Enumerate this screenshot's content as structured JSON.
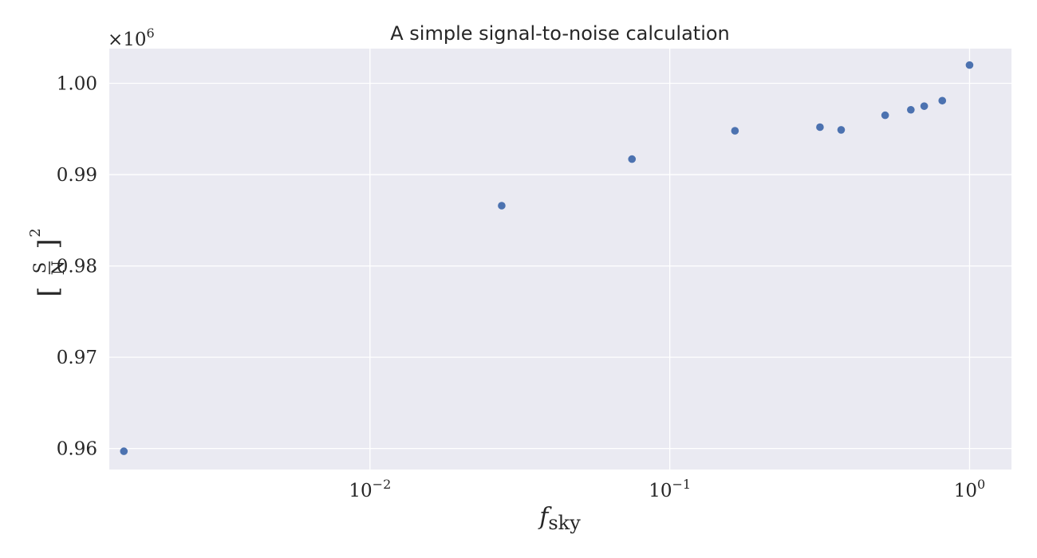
{
  "chart_data": {
    "type": "scatter",
    "title": "A simple signal-to-noise calculation",
    "xlabel": {
      "base": "f",
      "subscript": "sky"
    },
    "ylabel": {
      "numerator": "S",
      "denominator": "N",
      "exponent": "2"
    },
    "x_scale": "log",
    "y_offset_text": {
      "base": "×10",
      "exponent": "6"
    },
    "xlim": [
      0.00135,
      1.38
    ],
    "ylim": [
      0.9577,
      1.0038
    ],
    "grid": true,
    "x_ticks": [
      {
        "value": 0.01,
        "base": "10",
        "exponent": "−2"
      },
      {
        "value": 0.1,
        "base": "10",
        "exponent": "−1"
      },
      {
        "value": 1,
        "base": "10",
        "exponent": "0"
      }
    ],
    "y_ticks": [
      {
        "value": 0.96,
        "label": "0.96"
      },
      {
        "value": 0.97,
        "label": "0.97"
      },
      {
        "value": 0.98,
        "label": "0.98"
      },
      {
        "value": 0.99,
        "label": "0.99"
      },
      {
        "value": 1.0,
        "label": "1.00"
      }
    ],
    "points": [
      {
        "x": 0.00151,
        "y": 0.9597
      },
      {
        "x": 0.0275,
        "y": 0.9866
      },
      {
        "x": 0.0748,
        "y": 0.9917
      },
      {
        "x": 0.165,
        "y": 0.9948
      },
      {
        "x": 0.317,
        "y": 0.9952
      },
      {
        "x": 0.373,
        "y": 0.9949
      },
      {
        "x": 0.523,
        "y": 0.9965
      },
      {
        "x": 0.637,
        "y": 0.9971
      },
      {
        "x": 0.706,
        "y": 0.9975
      },
      {
        "x": 0.811,
        "y": 0.9981
      },
      {
        "x": 1.0,
        "y": 1.002
      }
    ],
    "colors": {
      "points": "#4c72b0",
      "background": "#eaeaf2",
      "grid": "#ffffff"
    }
  }
}
